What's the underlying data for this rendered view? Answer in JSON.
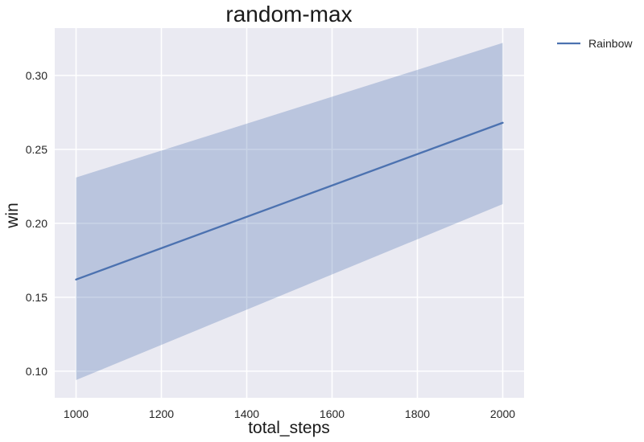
{
  "chart_data": {
    "type": "line",
    "title": "random-max",
    "xlabel": "total_steps",
    "ylabel": "win",
    "xlim": [
      950,
      2050
    ],
    "ylim": [
      0.082,
      0.332
    ],
    "xticks": [
      1000,
      1200,
      1400,
      1600,
      1800,
      2000
    ],
    "yticks": [
      0.1,
      0.15,
      0.2,
      0.25,
      0.3
    ],
    "xtick_labels": [
      "1000",
      "1200",
      "1400",
      "1600",
      "1800",
      "2000"
    ],
    "ytick_labels": [
      "0.10",
      "0.15",
      "0.20",
      "0.25",
      "0.30"
    ],
    "grid": true,
    "legend_position": "outside-top-right",
    "series": [
      {
        "name": "Rainbow",
        "x": [
          1000,
          2000
        ],
        "y": [
          0.162,
          0.268
        ],
        "lower": [
          0.094,
          0.213
        ],
        "upper": [
          0.231,
          0.322
        ],
        "color": "#4c72b0",
        "band_color": "#4c72b0"
      }
    ],
    "background_color": "#eaeaf2",
    "grid_color": "#ffffff"
  }
}
